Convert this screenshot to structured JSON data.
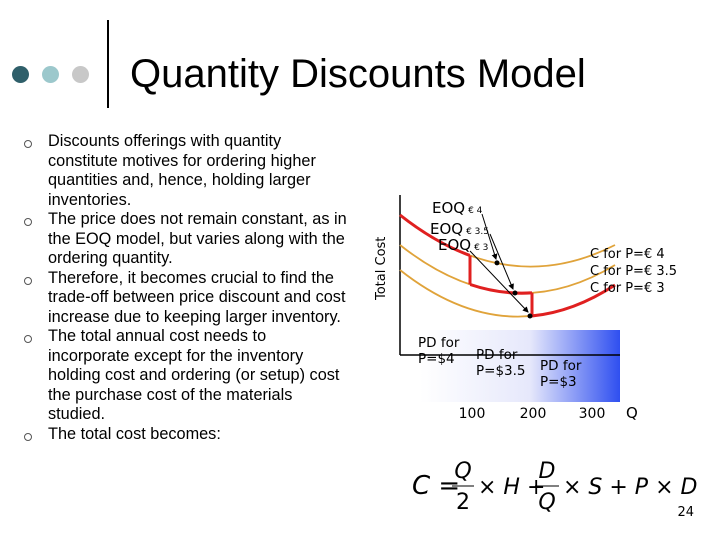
{
  "title": "Quantity Discounts Model",
  "bullets": [
    "Discounts offerings with quantity constitute motives for ordering higher quantities and, hence, holding larger inventories.",
    "The price does not remain constant, as in the EOQ model, but varies along with the ordering quantity.",
    "Therefore, it becomes crucial to find the trade-off between price discount and cost increase due to keeping larger inventory.",
    "The total annual cost needs to incorporate except for the inventory holding cost and ordering (or setup) cost the purchase cost of the materials studied.",
    "The total cost becomes:"
  ],
  "diagram": {
    "y_axis_label": "Total Cost",
    "x_axis_label": "Q",
    "x_ticks": [
      "100",
      "200",
      "300"
    ],
    "eoq_labels": [
      {
        "text": "EOQ",
        "sub": "€ 4"
      },
      {
        "text": "EOQ",
        "sub": "€ 3.5"
      },
      {
        "text": "EOQ",
        "sub": "€ 3"
      }
    ],
    "cost_labels": [
      "C for P=€ 4",
      "C for P=€ 3.5",
      "C for P=€ 3"
    ],
    "pd_labels": [
      [
        "PD for",
        "P=$4"
      ],
      [
        "PD for",
        "P=$3.5"
      ],
      [
        "PD for",
        "P=$3"
      ]
    ]
  },
  "formula": {
    "lhs": "C =",
    "f1_num": "Q",
    "f1_den": "2",
    "mid": "× H +",
    "f2_num": "D",
    "f2_den": "Q",
    "end": "× S + P × D"
  },
  "page_number": "24"
}
